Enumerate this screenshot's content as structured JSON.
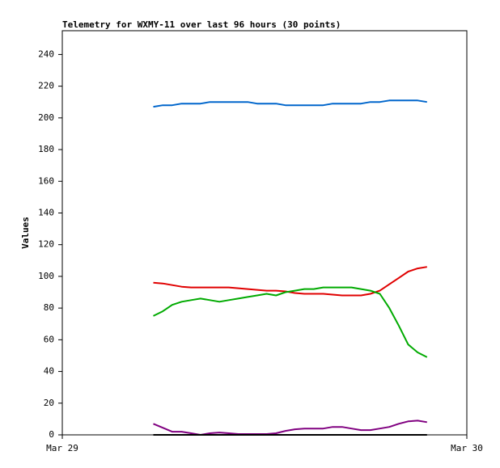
{
  "chart_data": {
    "type": "line",
    "title": "Telemetry for WXMY-11 over last 96 hours (30 points)",
    "y_label": "Values",
    "x": [
      5.4,
      5.96,
      6.52,
      7.08,
      7.64,
      8.2,
      8.76,
      9.32,
      9.88,
      10.44,
      11.0,
      11.56,
      12.12,
      12.68,
      13.24,
      13.8,
      14.36,
      14.92,
      15.48,
      16.04,
      16.6,
      17.16,
      17.72,
      18.28,
      18.84,
      19.4,
      19.96,
      20.52,
      21.08,
      21.64
    ],
    "xlim": [
      0,
      24
    ],
    "xticks": [
      {
        "value": 0,
        "label": "Mar 29"
      },
      {
        "value": 24,
        "label": "Mar 30"
      }
    ],
    "ylim": [
      0,
      255
    ],
    "yticks": [
      0,
      20,
      40,
      60,
      80,
      100,
      120,
      140,
      160,
      180,
      200,
      220,
      240
    ],
    "series": [
      {
        "color": "#0066cc",
        "values": [
          207,
          208,
          208,
          209,
          209,
          209,
          210,
          210,
          210,
          210,
          210,
          209,
          209,
          209,
          208,
          208,
          208,
          208,
          208,
          209,
          209,
          209,
          209,
          210,
          210,
          211,
          211,
          211,
          211,
          210
        ]
      },
      {
        "color": "#e00000",
        "values": [
          96,
          95.5,
          94.5,
          93.5,
          93,
          93,
          93,
          93,
          93,
          92.5,
          92,
          91.5,
          91,
          91,
          90.5,
          89.5,
          89,
          89,
          89,
          88.5,
          88,
          88,
          88,
          89,
          91,
          95,
          99,
          103,
          105,
          106
        ]
      },
      {
        "color": "#00aa00",
        "values": [
          75,
          78,
          82,
          84,
          85,
          86,
          85,
          84,
          85,
          86,
          87,
          88,
          89,
          88,
          90,
          91,
          92,
          92,
          93,
          93,
          93,
          93,
          92,
          91,
          89,
          80,
          69,
          57,
          52,
          49
        ]
      },
      {
        "color": "#800080",
        "values": [
          7,
          4.5,
          2,
          2,
          1,
          0,
          1,
          1.5,
          1,
          0.5,
          0.5,
          0.5,
          0.5,
          1,
          2.5,
          3.5,
          4,
          4,
          4,
          5,
          5,
          4,
          3,
          3,
          4,
          5,
          7,
          8.5,
          9,
          8
        ]
      },
      {
        "color": "#000000",
        "values": [
          0,
          0,
          0,
          0,
          0,
          0,
          0,
          0,
          0,
          0,
          0,
          0,
          0,
          0,
          0,
          0,
          0,
          0,
          0,
          0,
          0,
          0,
          0,
          0,
          0,
          0,
          0,
          0,
          0,
          0
        ]
      }
    ]
  }
}
